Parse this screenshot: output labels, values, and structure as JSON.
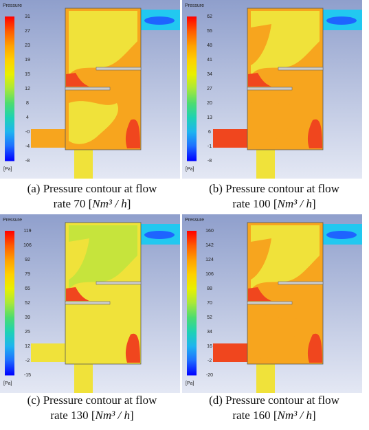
{
  "panels": [
    {
      "legend_title": "Pressure",
      "legend_labels": [
        "31",
        "27",
        "23",
        "19",
        "15",
        "12",
        "8",
        "4",
        "-0",
        "-4",
        "-8"
      ],
      "legend_unit": "[Pa]",
      "caption": {
        "line1": "(a) Pressure contour at flow",
        "line2": "rate 70 [",
        "unit": "Nm³ / h",
        "close": "]"
      }
    },
    {
      "legend_title": "Pressure",
      "legend_labels": [
        "62",
        "55",
        "48",
        "41",
        "34",
        "27",
        "20",
        "13",
        "6",
        "-1",
        "-8"
      ],
      "legend_unit": "[Pa]",
      "caption": {
        "line1": "(b) Pressure contour at flow",
        "line2": "rate 100 [",
        "unit": "Nm³ / h",
        "close": "]"
      }
    },
    {
      "legend_title": "Pressure",
      "legend_labels": [
        "119",
        "106",
        "92",
        "79",
        "65",
        "52",
        "39",
        "25",
        "12",
        "-2",
        "-15"
      ],
      "legend_unit": "[Pa]",
      "caption": {
        "line1": "(c) Pressure contour at flow",
        "line2": "rate 130 [",
        "unit": "Nm³ / h",
        "close": "]"
      }
    },
    {
      "legend_title": "Pressure",
      "legend_labels": [
        "160",
        "142",
        "124",
        "106",
        "88",
        "70",
        "52",
        "34",
        "16",
        "-2",
        "-20"
      ],
      "legend_unit": "[Pa]",
      "caption": {
        "line1": "(d) Pressure contour at flow",
        "line2": "rate 160 [",
        "unit": "Nm³ / h",
        "close": "]"
      }
    }
  ]
}
